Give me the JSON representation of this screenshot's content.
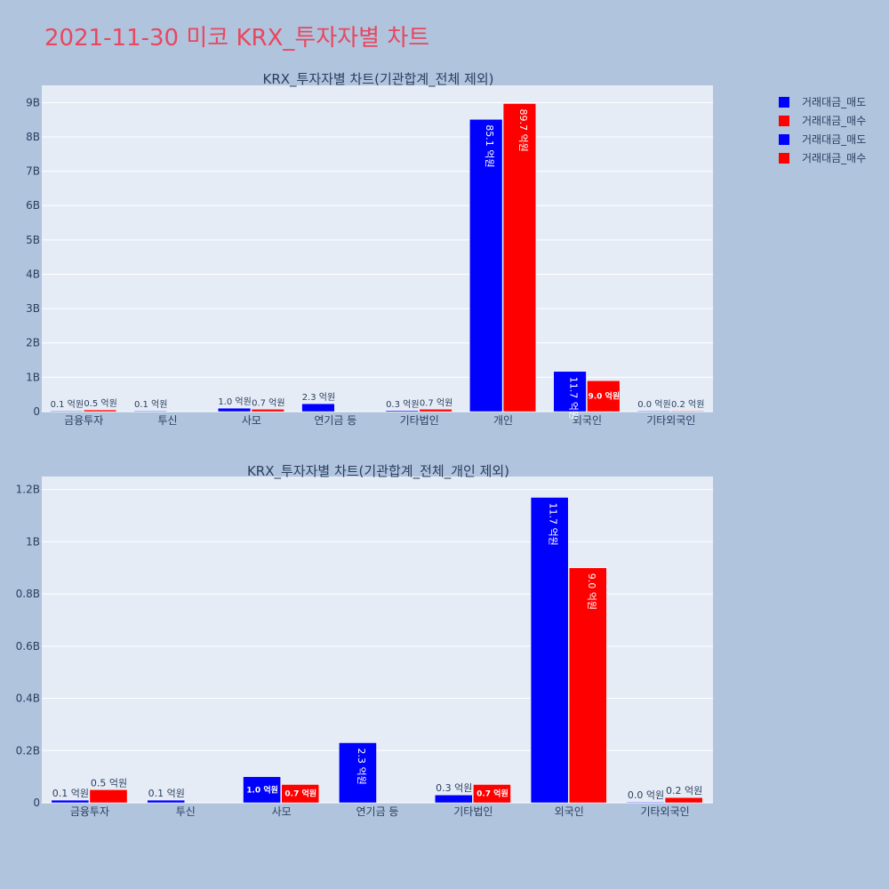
{
  "page": {
    "title": "2021-11-30 미코 KRX_투자자별 차트"
  },
  "colors": {
    "sell": "#0000ff",
    "buy": "#ff0000",
    "plot_bg": "#e5ecf6",
    "grid": "#ffffff",
    "text": "#2a3f5f",
    "page_bg": "#b0c4de",
    "title": "#e8475f"
  },
  "legend": {
    "items": [
      {
        "label": "거래대금_매도",
        "color": "#0000ff"
      },
      {
        "label": "거래대금_매수",
        "color": "#ff0000"
      },
      {
        "label": "거래대금_매도",
        "color": "#0000ff"
      },
      {
        "label": "거래대금_매수",
        "color": "#ff0000"
      }
    ]
  },
  "chart_data": [
    {
      "type": "bar",
      "title": "KRX_투자자별 차트(기관합계_전체 제외)",
      "categories": [
        "금융투자",
        "투신",
        "사모",
        "연기금 등",
        "기타법인",
        "개인",
        "외국인",
        "기타외국인"
      ],
      "ylim": [
        0,
        9500000000
      ],
      "yticks": [
        0,
        1000000000,
        2000000000,
        3000000000,
        4000000000,
        5000000000,
        6000000000,
        7000000000,
        8000000000,
        9000000000
      ],
      "ytick_labels": [
        "0",
        "1B",
        "2B",
        "3B",
        "4B",
        "5B",
        "6B",
        "7B",
        "8B",
        "9B"
      ],
      "grid": true,
      "series": [
        {
          "name": "거래대금_매도",
          "color": "#0000ff",
          "values": [
            10000000,
            10000000,
            100000000,
            230000000,
            30000000,
            8510000000,
            1170000000,
            0
          ],
          "labels": [
            "0.1 억원",
            "0.1 억원",
            "1.0 억원",
            "2.3 억원",
            "0.3 억원",
            "85.1 억원",
            "11.7 억원",
            "0.0 억원"
          ]
        },
        {
          "name": "거래대금_매수",
          "color": "#ff0000",
          "values": [
            50000000,
            null,
            70000000,
            null,
            70000000,
            8970000000,
            900000000,
            20000000
          ],
          "labels": [
            "0.5 억원",
            "",
            "0.7 억원",
            "",
            "0.7 억원",
            "89.7 억원",
            "9.0 억원",
            "0.2 억원"
          ]
        }
      ]
    },
    {
      "type": "bar",
      "title": "KRX_투자자별 차트(기관합계_전체_개인 제외)",
      "categories": [
        "금융투자",
        "투신",
        "사모",
        "연기금 등",
        "기타법인",
        "외국인",
        "기타외국인"
      ],
      "ylim": [
        0,
        1250000000
      ],
      "yticks": [
        0,
        200000000,
        400000000,
        600000000,
        800000000,
        1000000000,
        1200000000
      ],
      "ytick_labels": [
        "0",
        "0.2B",
        "0.4B",
        "0.6B",
        "0.8B",
        "1B",
        "1.2B"
      ],
      "grid": true,
      "series": [
        {
          "name": "거래대금_매도",
          "color": "#0000ff",
          "values": [
            10000000,
            10000000,
            100000000,
            230000000,
            30000000,
            1170000000,
            0
          ],
          "labels": [
            "0.1 억원",
            "0.1 억원",
            "1.0 억원",
            "2.3 억원",
            "0.3 억원",
            "11.7 억원",
            "0.0 억원"
          ]
        },
        {
          "name": "거래대금_매수",
          "color": "#ff0000",
          "values": [
            50000000,
            null,
            70000000,
            null,
            70000000,
            900000000,
            20000000
          ],
          "labels": [
            "0.5 억원",
            "",
            "0.7 억원",
            "",
            "0.7 억원",
            "9.0 억원",
            "0.2 억원"
          ]
        }
      ]
    }
  ]
}
